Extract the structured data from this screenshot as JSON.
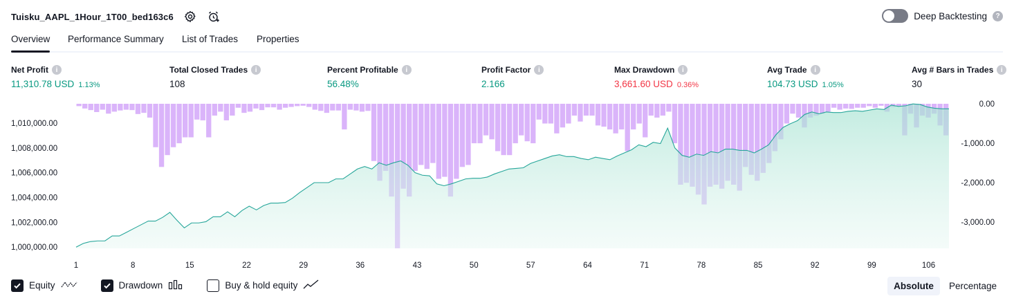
{
  "header": {
    "strategy_name": "Tuisku_AAPL_1Hour_1T00_bed163c6",
    "settings_icon": "gear-icon",
    "alert_icon": "alarm-clock-plus-icon"
  },
  "deep_backtesting": {
    "label": "Deep Backtesting",
    "enabled": false,
    "help": "?"
  },
  "tabs": [
    {
      "label": "Overview",
      "active": true
    },
    {
      "label": "Performance Summary",
      "active": false
    },
    {
      "label": "List of Trades",
      "active": false
    },
    {
      "label": "Properties",
      "active": false
    }
  ],
  "metrics": [
    {
      "label": "Net Profit",
      "value": "11,310.78 USD",
      "pct": "1.13%",
      "color": "green"
    },
    {
      "label": "Total Closed Trades",
      "value": "108",
      "pct": "",
      "color": "neutral"
    },
    {
      "label": "Percent Profitable",
      "value": "56.48%",
      "pct": "",
      "color": "green"
    },
    {
      "label": "Profit Factor",
      "value": "2.166",
      "pct": "",
      "color": "green"
    },
    {
      "label": "Max Drawdown",
      "value": "3,661.60 USD",
      "pct": "0.36%",
      "color": "red"
    },
    {
      "label": "Avg Trade",
      "value": "104.73 USD",
      "pct": "1.05%",
      "color": "green"
    },
    {
      "label": "Avg # Bars in Trades",
      "value": "30",
      "pct": "",
      "color": "neutral"
    }
  ],
  "chart_data": {
    "type": "area",
    "x_ticks": [
      1,
      8,
      15,
      22,
      29,
      36,
      43,
      50,
      57,
      64,
      71,
      78,
      85,
      92,
      99,
      106
    ],
    "left_axis": {
      "ticks": [
        "1,000,000.00",
        "1,002,000.00",
        "1,004,000.00",
        "1,006,000.00",
        "1,008,000.00",
        "1,010,000.00"
      ],
      "ylim": [
        999900,
        1011560
      ]
    },
    "right_axis": {
      "ticks": [
        "0.00",
        "-1,000.00",
        "-2,000.00",
        "-3,000.00"
      ],
      "ylim": [
        -3661.6,
        0
      ]
    },
    "series": [
      {
        "name": "Equity",
        "type": "area",
        "color": "#26a69a",
        "values": [
          1000000,
          1000300,
          1000450,
          1000500,
          1000500,
          1000900,
          1000900,
          1001200,
          1001500,
          1001800,
          1002100,
          1002100,
          1002400,
          1002800,
          1002150,
          1001550,
          1001950,
          1001950,
          1002050,
          1002450,
          1002450,
          1002850,
          1002450,
          1002950,
          1003300,
          1003000,
          1003350,
          1003550,
          1003550,
          1003600,
          1003950,
          1004400,
          1004800,
          1005200,
          1005200,
          1005200,
          1005500,
          1005500,
          1005900,
          1006300,
          1006500,
          1006300,
          1006800,
          1006600,
          1006800,
          1006950,
          1006600,
          1006000,
          1005800,
          1005750,
          1005100,
          1004950,
          1005100,
          1005300,
          1005500,
          1005550,
          1005550,
          1005650,
          1005900,
          1006100,
          1006300,
          1006350,
          1006400,
          1006750,
          1006950,
          1007150,
          1007350,
          1007450,
          1007300,
          1007300,
          1007150,
          1007050,
          1007250,
          1007150,
          1007050,
          1007350,
          1007600,
          1007850,
          1008250,
          1008100,
          1008450,
          1008350,
          1009600,
          1008000,
          1007400,
          1007250,
          1007500,
          1007400,
          1007700,
          1007600,
          1007900,
          1007900,
          1007800,
          1007800,
          1007600,
          1007900,
          1008250,
          1009050,
          1009650,
          1009950,
          1010200,
          1010700,
          1010900,
          1010750,
          1010900,
          1010850,
          1010850,
          1010950,
          1011000,
          1010950,
          1011050,
          1011150,
          1011100,
          1011450,
          1011350,
          1011400,
          1011550,
          1011500,
          1011300,
          1011200,
          1011150,
          1011150
        ]
      },
      {
        "name": "Drawdown",
        "type": "bar",
        "color": "#cf9ff8",
        "values": [
          -60,
          -120,
          -160,
          -210,
          -150,
          -250,
          -200,
          -170,
          -150,
          -160,
          -260,
          -230,
          -350,
          -1100,
          -1600,
          -1300,
          -1100,
          -1000,
          -850,
          -850,
          -400,
          -420,
          -850,
          -300,
          -200,
          -420,
          -300,
          -100,
          -230,
          -200,
          -120,
          -160,
          -90,
          -90,
          -150,
          -100,
          -80,
          -60,
          -50,
          -80,
          -150,
          -180,
          -230,
          -170,
          -170,
          -650,
          -150,
          -170,
          -200,
          -180,
          -1450,
          -1950,
          -1700,
          -2350,
          -3660,
          -2150,
          -2350,
          -1700,
          -1550,
          -1650,
          -1500,
          -1900,
          -1850,
          -2350,
          -1900,
          -1600,
          -1550,
          -1000,
          -1000,
          -800,
          -900,
          -1200,
          -1300,
          -1300,
          -1000,
          -800,
          -950,
          -1000,
          -400,
          -500,
          -500,
          -750,
          -600,
          -500,
          -300,
          -450,
          -300,
          -300,
          -550,
          -580,
          -650,
          -750,
          -650,
          -1200,
          -650,
          -500,
          -850,
          -300,
          -350,
          -300,
          -200,
          -1000,
          -2050,
          -2000,
          -2100,
          -2300,
          -2550,
          -2100,
          -2050,
          -2150,
          -1950,
          -2050,
          -2200,
          -1600,
          -1800,
          -1950,
          -1750,
          -1500,
          -1200,
          -900,
          -500,
          -250,
          -350,
          -600,
          -350,
          -300,
          -250,
          -200,
          -100,
          -150,
          -120,
          -130,
          -100,
          -100,
          -60,
          -100,
          -50,
          -200,
          -80,
          -60,
          -800,
          -250,
          -600,
          -300,
          -350,
          -250,
          -550,
          -800
        ]
      }
    ],
    "legend_items": [
      {
        "label": "Equity",
        "checked": true,
        "icon": "equity-line-icon"
      },
      {
        "label": "Drawdown",
        "checked": true,
        "icon": "drawdown-bars-icon"
      },
      {
        "label": "Buy & hold equity",
        "checked": false,
        "icon": "buy-hold-line-icon"
      }
    ]
  },
  "view_modes": [
    {
      "label": "Absolute",
      "active": true
    },
    {
      "label": "Percentage",
      "active": false
    }
  ]
}
